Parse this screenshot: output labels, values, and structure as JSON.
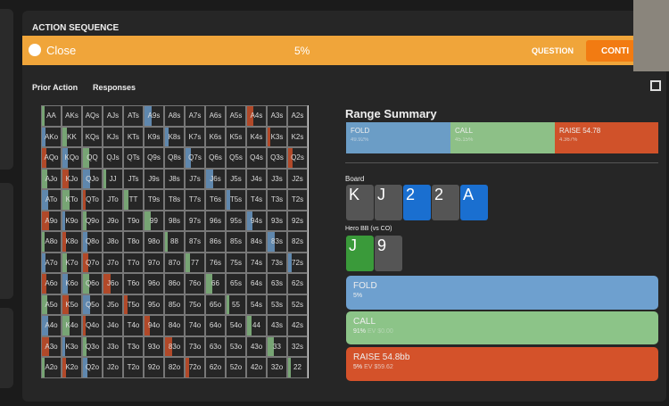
{
  "header": {
    "title": "ACTION SEQUENCE",
    "close": "Close",
    "percent": "5%",
    "question": "QUESTION",
    "continue": "CONTI"
  },
  "tabs": [
    "Prior Action",
    "Responses"
  ],
  "grid": {
    "rows": [
      [
        "AA",
        "AKs",
        "AQs",
        "AJs",
        "ATs",
        "A9s",
        "A8s",
        "A7s",
        "A6s",
        "A5s",
        "A4s",
        "A3s",
        "A2s"
      ],
      [
        "AKo",
        "KK",
        "KQs",
        "KJs",
        "KTs",
        "K9s",
        "K8s",
        "K7s",
        "K6s",
        "K5s",
        "K4s",
        "K3s",
        "K2s"
      ],
      [
        "AQo",
        "KQo",
        "QQ",
        "QJs",
        "QTs",
        "Q9s",
        "Q8s",
        "Q7s",
        "Q6s",
        "Q5s",
        "Q4s",
        "Q3s",
        "Q2s"
      ],
      [
        "AJo",
        "KJo",
        "QJo",
        "JJ",
        "JTs",
        "J9s",
        "J8s",
        "J7s",
        "J6s",
        "J5s",
        "J4s",
        "J3s",
        "J2s"
      ],
      [
        "ATo",
        "KTo",
        "QTo",
        "JTo",
        "TT",
        "T9s",
        "T8s",
        "T7s",
        "T6s",
        "T5s",
        "T4s",
        "T3s",
        "T2s"
      ],
      [
        "A9o",
        "K9o",
        "Q9o",
        "J9o",
        "T9o",
        "99",
        "98s",
        "97s",
        "96s",
        "95s",
        "94s",
        "93s",
        "92s"
      ],
      [
        "A8o",
        "K8o",
        "Q8o",
        "J8o",
        "T8o",
        "98o",
        "88",
        "87s",
        "86s",
        "85s",
        "84s",
        "83s",
        "82s"
      ],
      [
        "A7o",
        "K7o",
        "Q7o",
        "J7o",
        "T7o",
        "97o",
        "87o",
        "77",
        "76s",
        "75s",
        "74s",
        "73s",
        "72s"
      ],
      [
        "A6o",
        "K6o",
        "Q6o",
        "J6o",
        "T6o",
        "96o",
        "86o",
        "76o",
        "66",
        "65s",
        "64s",
        "63s",
        "62s"
      ],
      [
        "A5o",
        "K5o",
        "Q5o",
        "J5o",
        "T5o",
        "95o",
        "85o",
        "75o",
        "65o",
        "55",
        "54s",
        "53s",
        "52s"
      ],
      [
        "A4o",
        "K4o",
        "Q4o",
        "J4o",
        "T4o",
        "94o",
        "84o",
        "74o",
        "64o",
        "54o",
        "44",
        "43s",
        "42s"
      ],
      [
        "A3o",
        "K3o",
        "Q3o",
        "J3o",
        "T3o",
        "93o",
        "83o",
        "73o",
        "63o",
        "53o",
        "43o",
        "33",
        "32s"
      ],
      [
        "A2o",
        "K2o",
        "Q2o",
        "J2o",
        "T2o",
        "92o",
        "82o",
        "72o",
        "62o",
        "52o",
        "42o",
        "32o",
        "22"
      ]
    ]
  },
  "summary": {
    "title": "Range Summary",
    "fold": {
      "label": "FOLD",
      "pct": "49.92%"
    },
    "call": {
      "label": "CALL",
      "pct": "45.15%"
    },
    "raise": {
      "label": "RAISE 54.78",
      "pct": "4.367%"
    }
  },
  "board": {
    "label": "Board",
    "cards": [
      "K",
      "J",
      "2",
      "2",
      "A"
    ]
  },
  "hero": {
    "label": "Hero BB (vs CO)",
    "cards": [
      "J",
      "9"
    ]
  },
  "actions": [
    {
      "label": "FOLD",
      "freq": "5%"
    },
    {
      "label": "CALL",
      "freq": "91%",
      "ev": "EV $0.00"
    },
    {
      "label": "RAISE 54.8bb",
      "freq": "5%",
      "ev": "EV",
      "evval": "$59.62"
    }
  ]
}
